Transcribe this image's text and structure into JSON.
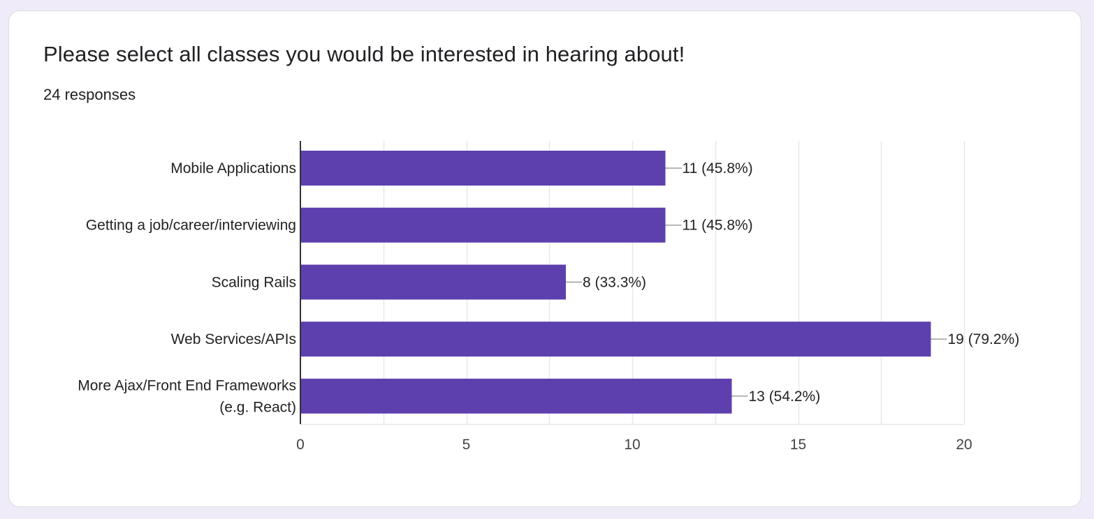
{
  "question": {
    "title": "Please select all classes you would be interested in hearing about!",
    "response_count": "24 responses"
  },
  "colors": {
    "bar": "#5e3fae",
    "axis": "#333333",
    "gridline": "#e8e8e8",
    "leader": "#9e9e9e",
    "text": "#222222",
    "tick_text": "#444444",
    "page_background": "#f0ebf8"
  },
  "chart_data": {
    "type": "bar",
    "orientation": "horizontal",
    "categories": [
      [
        "Mobile Applications"
      ],
      [
        "Getting a job/career/interviewing"
      ],
      [
        "Scaling Rails"
      ],
      [
        "Web Services/APIs"
      ],
      [
        "More Ajax/Front End Frameworks",
        "(e.g. React)"
      ]
    ],
    "values": [
      11,
      11,
      8,
      19,
      13
    ],
    "data_labels": [
      "11 (45.8%)",
      "11 (45.8%)",
      "8 (33.3%)",
      "19 (79.2%)",
      "13 (54.2%)"
    ],
    "xlim": [
      0,
      20
    ],
    "x_ticks": [
      0,
      5,
      10,
      15,
      20
    ],
    "grid": true,
    "legend": "none"
  }
}
